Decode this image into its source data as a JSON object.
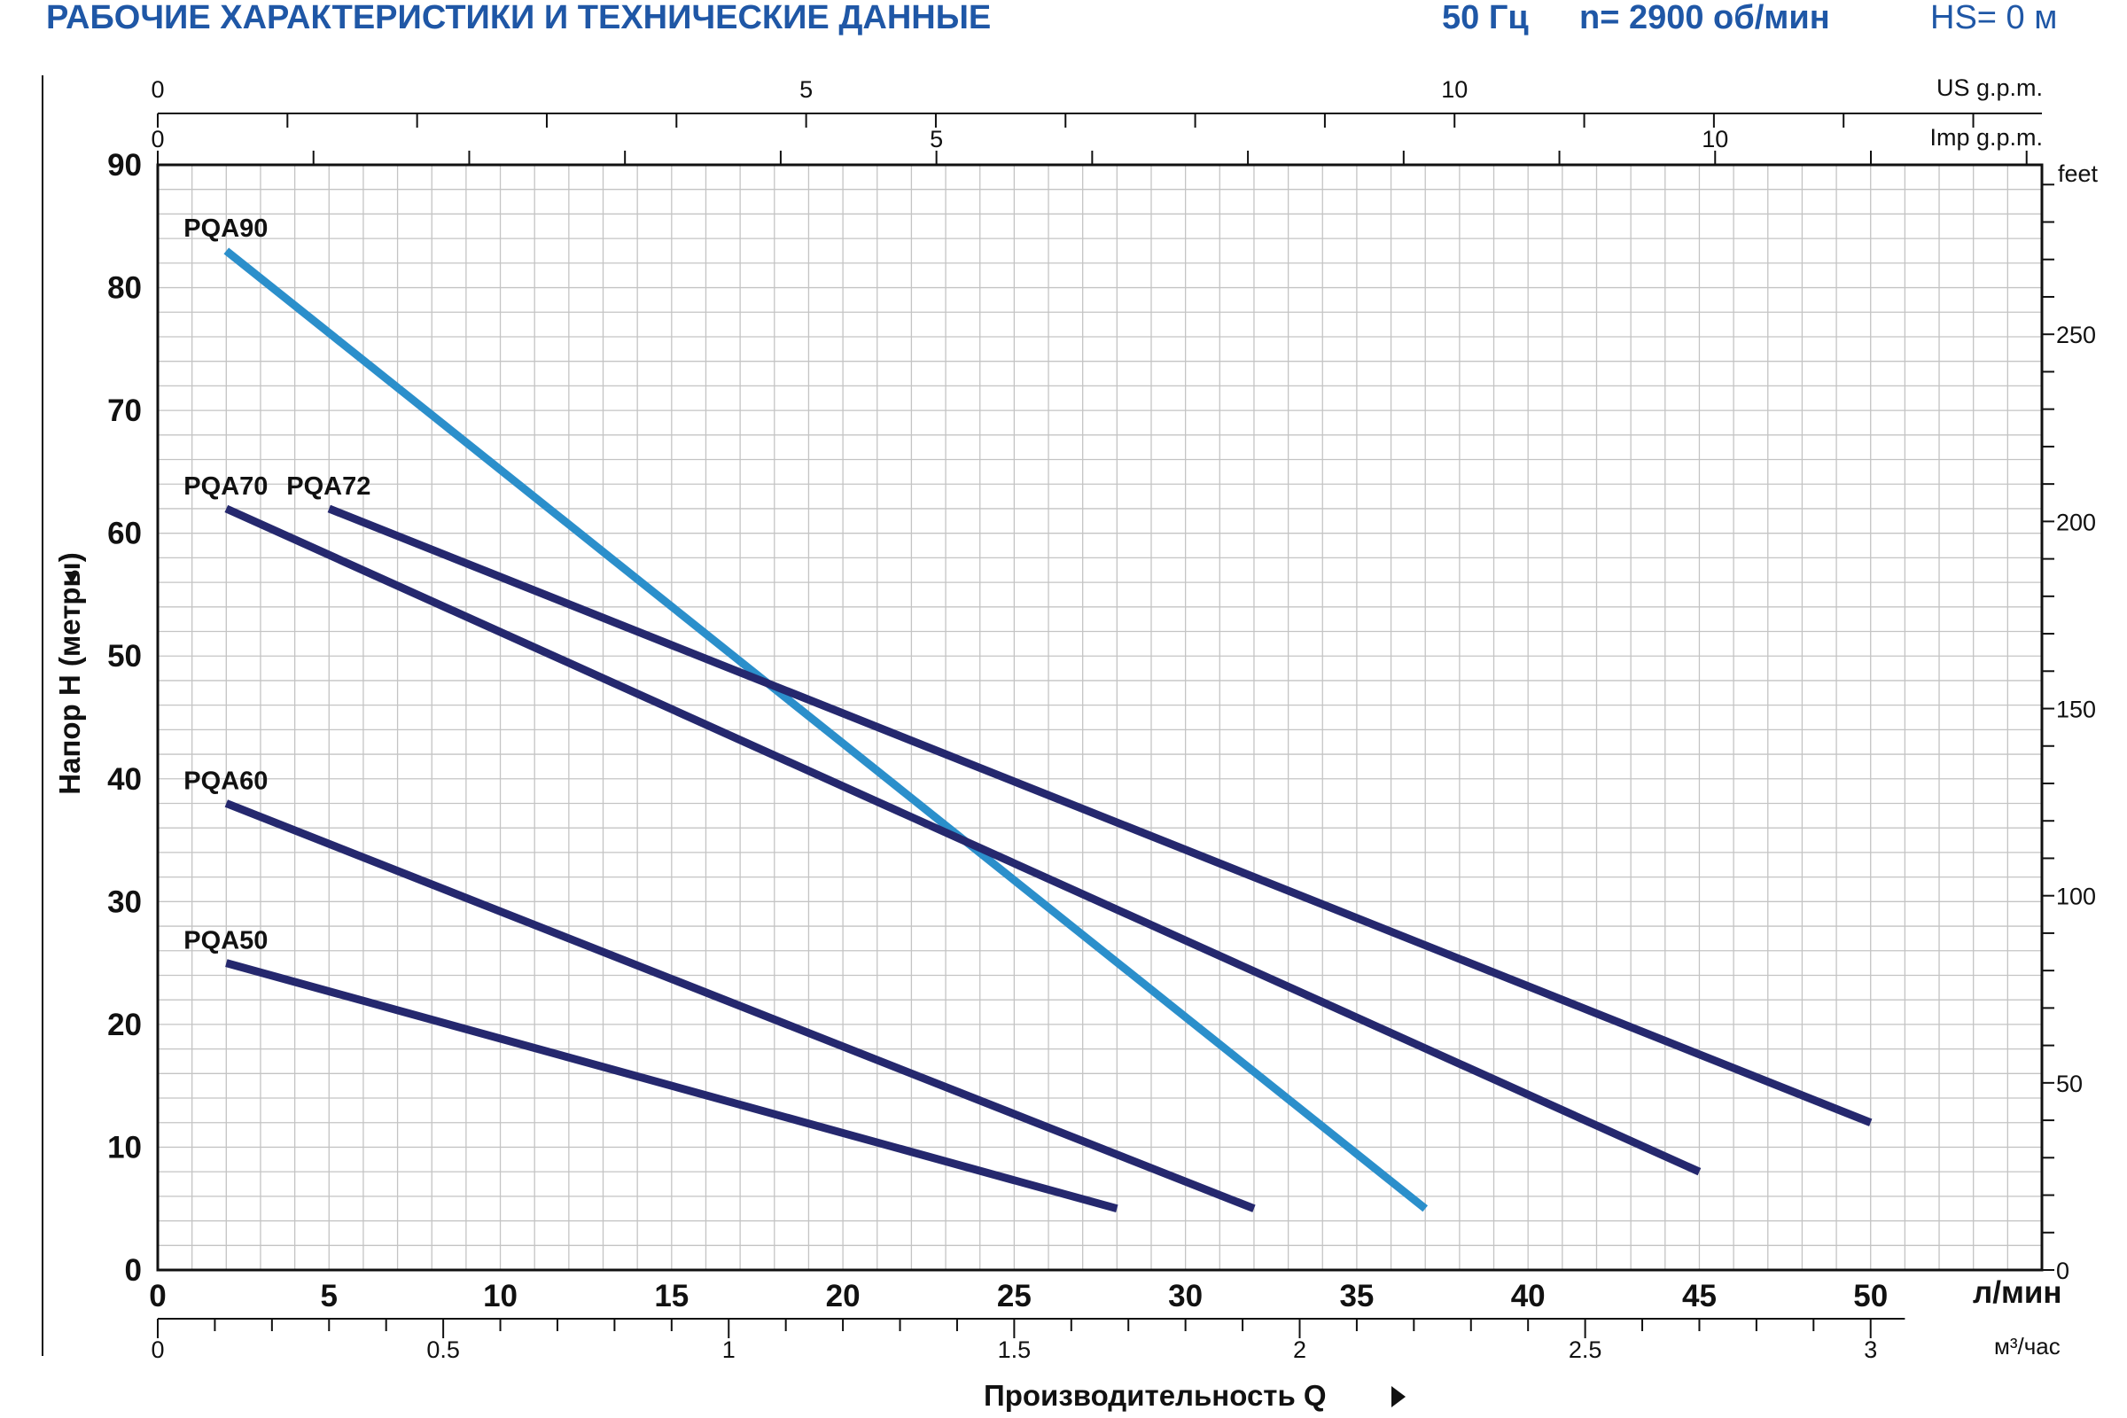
{
  "header": {
    "title": "РАБОЧИЕ ХАРАКТЕРИСТИКИ И ТЕХНИЧЕСКИЕ ДАННЫЕ",
    "freq": "50 Гц",
    "speed": "n= 2900 об/мин",
    "hs": "HS= 0 м",
    "color": "#1f57a6"
  },
  "chart_data": {
    "type": "line",
    "ylabel": "Напор H (метры)",
    "xlabel": "Производительность Q",
    "x_unit": "л/мин",
    "x_unit_m3": "м³/час",
    "x_unit_us": "US g.p.m.",
    "x_unit_imp": "Imp g.p.m.",
    "y_unit_feet": "feet",
    "xlim": [
      0,
      55
    ],
    "ylim": [
      0,
      90
    ],
    "grid": true,
    "x_ticks": [
      {
        "v": 0,
        "t": "0"
      },
      {
        "v": 5,
        "t": "5"
      },
      {
        "v": 10,
        "t": "10"
      },
      {
        "v": 15,
        "t": "15"
      },
      {
        "v": 20,
        "t": "20"
      },
      {
        "v": 25,
        "t": "25"
      },
      {
        "v": 30,
        "t": "30"
      },
      {
        "v": 35,
        "t": "35"
      },
      {
        "v": 40,
        "t": "40"
      },
      {
        "v": 45,
        "t": "45"
      },
      {
        "v": 50,
        "t": "50"
      }
    ],
    "y_ticks": [
      {
        "v": 0,
        "t": "0"
      },
      {
        "v": 10,
        "t": "10"
      },
      {
        "v": 20,
        "t": "20"
      },
      {
        "v": 30,
        "t": "30"
      },
      {
        "v": 40,
        "t": "40"
      },
      {
        "v": 50,
        "t": "50"
      },
      {
        "v": 60,
        "t": "60"
      },
      {
        "v": 70,
        "t": "70"
      },
      {
        "v": 80,
        "t": "80"
      },
      {
        "v": 90,
        "t": "90"
      }
    ],
    "m3h_ticks": [
      {
        "v": 0,
        "t": "0"
      },
      {
        "v": 0.5,
        "t": "0.5"
      },
      {
        "v": 1,
        "t": "1"
      },
      {
        "v": 1.5,
        "t": "1.5"
      },
      {
        "v": 2,
        "t": "2"
      },
      {
        "v": 2.5,
        "t": "2.5"
      },
      {
        "v": 3,
        "t": "3"
      }
    ],
    "us_gpm_ticks": [
      {
        "v": 0,
        "t": "0"
      },
      {
        "v": 5,
        "t": "5"
      },
      {
        "v": 10,
        "t": "10"
      }
    ],
    "imp_gpm_ticks": [
      {
        "v": 0,
        "t": "0"
      },
      {
        "v": 5,
        "t": "5"
      },
      {
        "v": 10,
        "t": "10"
      }
    ],
    "feet_ticks": [
      {
        "v": 0,
        "t": "0"
      },
      {
        "v": 50,
        "t": "50"
      },
      {
        "v": 100,
        "t": "100"
      },
      {
        "v": 150,
        "t": "150"
      },
      {
        "v": 200,
        "t": "200"
      },
      {
        "v": 250,
        "t": "250"
      }
    ],
    "series": [
      {
        "name": "PQA90",
        "color": "#2b8fcb",
        "x": [
          2,
          37
        ],
        "y": [
          83,
          5
        ]
      },
      {
        "name": "PQA70",
        "color": "#25286e",
        "x": [
          2,
          45
        ],
        "y": [
          62,
          8
        ]
      },
      {
        "name": "PQA72",
        "color": "#25286e",
        "x": [
          5,
          50
        ],
        "y": [
          62,
          12
        ]
      },
      {
        "name": "PQA60",
        "color": "#25286e",
        "x": [
          2,
          32
        ],
        "y": [
          38,
          5
        ]
      },
      {
        "name": "PQA50",
        "color": "#25286e",
        "x": [
          2,
          28
        ],
        "y": [
          25,
          5
        ]
      }
    ]
  }
}
